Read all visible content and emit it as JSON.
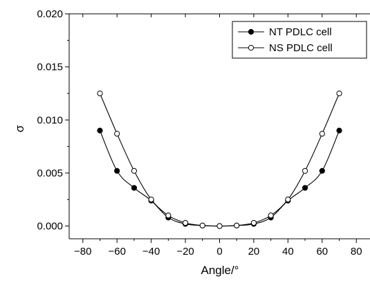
{
  "chart_data": {
    "type": "line",
    "title": "",
    "xlabel": "Angle/°",
    "ylabel": "σ",
    "xlim": [
      -88,
      88
    ],
    "ylim": [
      -0.0012,
      0.02
    ],
    "xticks": [
      -80,
      -60,
      -40,
      -20,
      0,
      20,
      40,
      60,
      80
    ],
    "xtick_labels": [
      "−80",
      "−60",
      "−40",
      "−20",
      "0",
      "20",
      "40",
      "60",
      "80"
    ],
    "yticks": [
      0.0,
      0.005,
      0.01,
      0.015,
      0.02
    ],
    "ytick_labels": [
      "0.000",
      "0.005",
      "0.010",
      "0.015",
      "0.020"
    ],
    "grid": false,
    "legend_position": "top-right",
    "series": [
      {
        "name": "NT PDLC cell",
        "marker": "filled-circle",
        "x": [
          -70,
          -60,
          -50,
          -40,
          -30,
          -20,
          -10,
          0,
          10,
          20,
          30,
          40,
          50,
          60,
          70
        ],
        "y": [
          0.009,
          0.0052,
          0.0036,
          0.0024,
          0.0008,
          0.0002,
          5e-05,
          0.0,
          5e-05,
          0.0002,
          0.0008,
          0.0024,
          0.0036,
          0.0052,
          0.009
        ]
      },
      {
        "name": "NS PDLC cell",
        "marker": "open-circle",
        "x": [
          -70,
          -60,
          -50,
          -40,
          -30,
          -20,
          -10,
          0,
          10,
          20,
          30,
          40,
          50,
          60,
          70
        ],
        "y": [
          0.0125,
          0.0087,
          0.0052,
          0.0025,
          0.001,
          0.0003,
          5e-05,
          0.0,
          5e-05,
          0.0003,
          0.001,
          0.0025,
          0.0052,
          0.0087,
          0.0125
        ]
      }
    ]
  }
}
